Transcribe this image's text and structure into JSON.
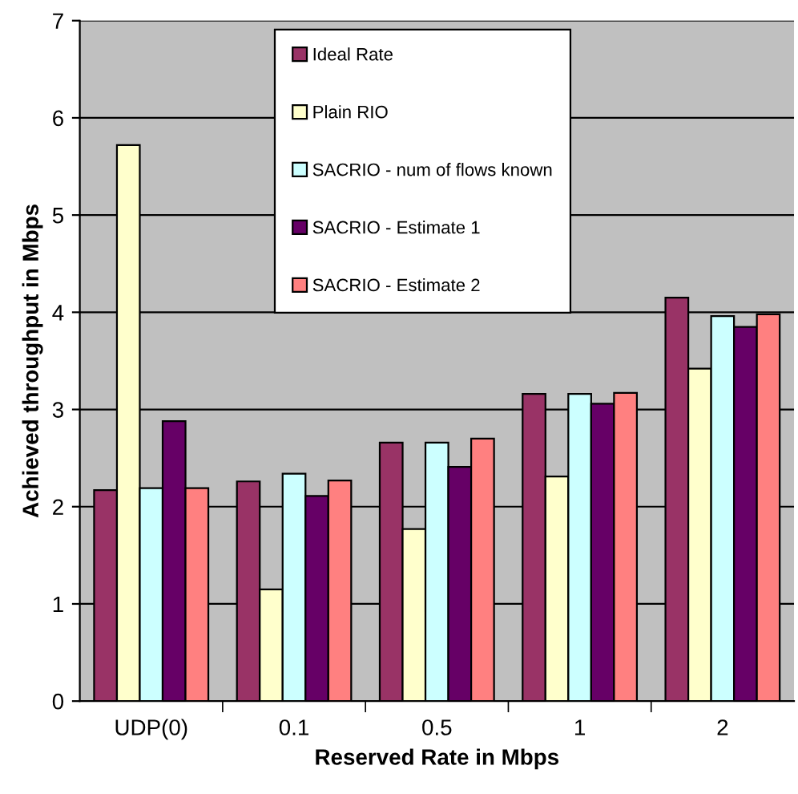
{
  "chart_data": {
    "type": "bar",
    "xlabel": "Reserved Rate in Mbps",
    "ylabel": "Achieved throughput in Mbps",
    "categories": [
      "UDP(0)",
      "0.1",
      "0.5",
      "1",
      "2"
    ],
    "series": [
      {
        "name": "Ideal Rate",
        "color": "#993366",
        "values": [
          2.17,
          2.26,
          2.66,
          3.16,
          4.15
        ]
      },
      {
        "name": "Plain RIO",
        "color": "#ffffcc",
        "values": [
          5.72,
          1.15,
          1.77,
          2.31,
          3.42
        ]
      },
      {
        "name": "SACRIO - num of flows known",
        "color": "#ccffff",
        "values": [
          2.19,
          2.34,
          2.66,
          3.16,
          3.96
        ]
      },
      {
        "name": "SACRIO - Estimate 1",
        "color": "#660066",
        "values": [
          2.88,
          2.11,
          2.41,
          3.06,
          3.85
        ]
      },
      {
        "name": "SACRIO - Estimate 2",
        "color": "#ff8080",
        "values": [
          2.19,
          2.27,
          2.7,
          3.17,
          3.98
        ]
      }
    ],
    "ylim": [
      0,
      7
    ],
    "yticks": [
      0,
      1,
      2,
      3,
      4,
      5,
      6,
      7
    ],
    "grid": "y",
    "legend": "top"
  }
}
